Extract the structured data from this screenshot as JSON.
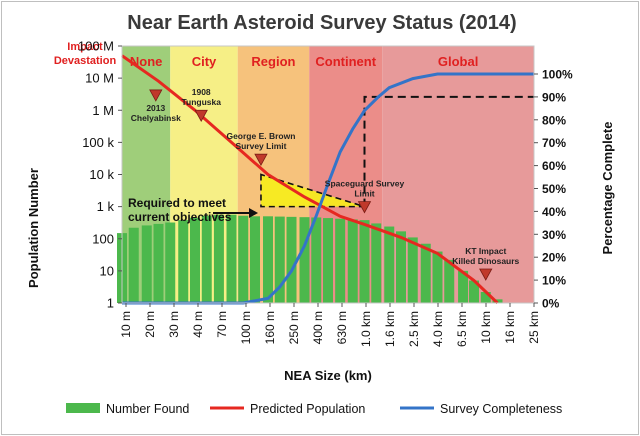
{
  "chart_data": {
    "type": "bar",
    "title": "Near Earth Asteroid Survey Status (2014)",
    "xlabel": "NEA Size (km)",
    "ylabel": "Population Number",
    "y2label": "Percentage Complete",
    "y_scale": "log",
    "y_ticks": [
      "1",
      "10",
      "100",
      "1 k",
      "10 k",
      "100 k",
      "1 M",
      "10 M",
      "100 M"
    ],
    "y_tick_values": [
      1,
      10,
      100,
      1000,
      10000,
      100000,
      1000000,
      10000000,
      100000000
    ],
    "y2_ticks": [
      "0%",
      "10%",
      "20%",
      "30%",
      "40%",
      "50%",
      "60%",
      "70%",
      "80%",
      "90%",
      "100%"
    ],
    "x_ticks": [
      "10 m",
      "20 m",
      "30 m",
      "40 m",
      "70 m",
      "100 m",
      "160 m",
      "250 m",
      "400 m",
      "630 m",
      "1.0 km",
      "1.6 km",
      "2.5 km",
      "4.0 km",
      "6.5 km",
      "10 km",
      "16 km",
      "25 km"
    ],
    "impact_label": "Impact Devastation",
    "zones": [
      {
        "label": "None",
        "from_km": 0.01,
        "to_km": 0.025,
        "color": "#9fce7a"
      },
      {
        "label": "City",
        "from_km": 0.025,
        "to_km": 0.09,
        "color": "#f6ef86"
      },
      {
        "label": "Region",
        "from_km": 0.09,
        "to_km": 0.35,
        "color": "#f6c27c"
      },
      {
        "label": "Continent",
        "from_km": 0.35,
        "to_km": 1.4,
        "color": "#eb8d89"
      },
      {
        "label": "Global",
        "from_km": 1.4,
        "to_km": 25,
        "color": "#e79a9a"
      }
    ],
    "series": [
      {
        "name": "Number Found",
        "kind": "bar",
        "color": "#4cb84c",
        "x_km": [
          0.01,
          0.0125,
          0.016,
          0.02,
          0.025,
          0.032,
          0.04,
          0.05,
          0.063,
          0.08,
          0.1,
          0.125,
          0.16,
          0.2,
          0.25,
          0.32,
          0.4,
          0.5,
          0.63,
          0.8,
          1.0,
          1.25,
          1.6,
          2.0,
          2.5,
          3.2,
          4.0,
          5.0,
          6.5,
          8.0,
          10,
          12.5
        ],
        "values": [
          150,
          220,
          260,
          290,
          320,
          380,
          450,
          520,
          560,
          560,
          520,
          500,
          500,
          490,
          480,
          470,
          460,
          440,
          420,
          400,
          380,
          300,
          240,
          170,
          110,
          70,
          40,
          22,
          10,
          5,
          2.2,
          1.3
        ]
      },
      {
        "name": "Predicted Population",
        "kind": "line",
        "color": "#e62820",
        "x_km": [
          0.01,
          0.02,
          0.04,
          0.08,
          0.16,
          0.32,
          0.63,
          1.0,
          2.0,
          4.0,
          8.0,
          12.5
        ],
        "values": [
          50000000,
          8000000,
          1000000,
          100000,
          10000,
          2000,
          500,
          280,
          110,
          35,
          5,
          1
        ]
      },
      {
        "name": "Survey Completeness",
        "kind": "line",
        "axis": "right",
        "color": "#3474c8",
        "x_km": [
          0.01,
          0.1,
          0.16,
          0.2,
          0.25,
          0.32,
          0.4,
          0.5,
          0.63,
          0.8,
          1.0,
          1.3,
          1.6,
          2.5,
          4.0,
          25
        ],
        "values_percent": [
          0,
          0,
          2,
          7,
          14,
          25,
          38,
          52,
          66,
          76,
          84,
          90,
          94,
          98,
          100,
          100
        ]
      }
    ],
    "annotations": [
      {
        "label": "2013 Chelyabinsk",
        "x_km": 0.019,
        "y": 3000000
      },
      {
        "label": "1908 Tunguska",
        "x_km": 0.045,
        "y": 700000
      },
      {
        "label": "George E. Brown Survey Limit",
        "x_km": 0.14,
        "y": 30000
      },
      {
        "label": "Spaceguard Survey Limit",
        "x_km": 1.0,
        "y": 1000
      },
      {
        "label": "KT Impact Killed Dinosaurs",
        "x_km": 10,
        "y": 8
      }
    ],
    "objective_label": "Required to meet current objectives",
    "legend": [
      "Number Found",
      "Predicted Population",
      "Survey Completeness"
    ],
    "legend_position": "bottom"
  }
}
